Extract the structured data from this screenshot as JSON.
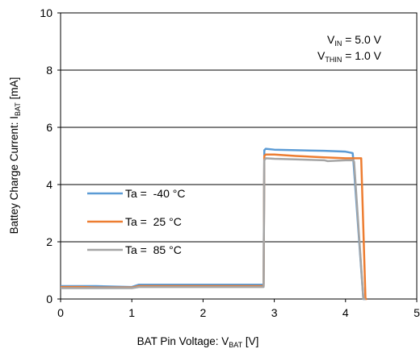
{
  "chart_data": {
    "type": "line",
    "xlabel_main": "BAT Pin Voltage: V",
    "xlabel_sub": "BAT",
    "xlabel_unit": " [V]",
    "ylabel_main": "Battey Charge Current: I",
    "ylabel_sub": "BAT",
    "ylabel_unit": " [mA]",
    "xlim": [
      0,
      5
    ],
    "ylim": [
      0,
      10
    ],
    "xticks": [
      0,
      1,
      2,
      3,
      4,
      5
    ],
    "yticks": [
      0,
      2,
      4,
      6,
      8,
      10
    ],
    "grid": "horizontal",
    "legend_placement": "center-left",
    "annotations": [
      {
        "main": "V",
        "sub": "IN",
        "rest": " = 5.0 V"
      },
      {
        "main": "V",
        "sub": "THIN",
        "rest": " = 1.0 V"
      }
    ],
    "series": [
      {
        "name": "Ta =  -40 °C",
        "color": "#5B9BD5",
        "x": [
          0.0,
          0.3,
          0.5,
          1.0,
          1.1,
          1.5,
          2.0,
          2.5,
          2.85,
          2.86,
          2.88,
          3.0,
          3.3,
          3.7,
          4.0,
          4.1,
          4.11,
          4.25,
          4.28
        ],
        "y": [
          0.45,
          0.45,
          0.45,
          0.42,
          0.5,
          0.5,
          0.5,
          0.5,
          0.5,
          5.2,
          5.25,
          5.22,
          5.2,
          5.18,
          5.15,
          5.1,
          4.85,
          0.0,
          0.0
        ]
      },
      {
        "name": "Ta =  25 °C",
        "color": "#ED7D31",
        "x": [
          0.0,
          0.3,
          0.5,
          1.0,
          1.1,
          1.5,
          2.0,
          2.5,
          2.85,
          2.86,
          2.88,
          3.0,
          3.3,
          3.7,
          4.0,
          4.2,
          4.22,
          4.28,
          4.3
        ],
        "y": [
          0.42,
          0.42,
          0.4,
          0.4,
          0.45,
          0.45,
          0.45,
          0.45,
          0.45,
          5.0,
          5.05,
          5.05,
          5.0,
          4.95,
          4.92,
          4.92,
          4.92,
          0.0,
          0.0
        ]
      },
      {
        "name": "Ta =  85 °C",
        "color": "#A5A5A5",
        "x": [
          0.0,
          0.3,
          0.5,
          1.0,
          1.1,
          1.5,
          2.0,
          2.5,
          2.85,
          2.86,
          2.88,
          3.0,
          3.3,
          3.7,
          3.75,
          4.0,
          4.1,
          4.12,
          4.25,
          4.28
        ],
        "y": [
          0.38,
          0.38,
          0.38,
          0.38,
          0.42,
          0.42,
          0.42,
          0.42,
          0.42,
          4.85,
          4.92,
          4.9,
          4.88,
          4.85,
          4.82,
          4.85,
          4.85,
          4.8,
          0.0,
          0.0
        ]
      }
    ]
  }
}
